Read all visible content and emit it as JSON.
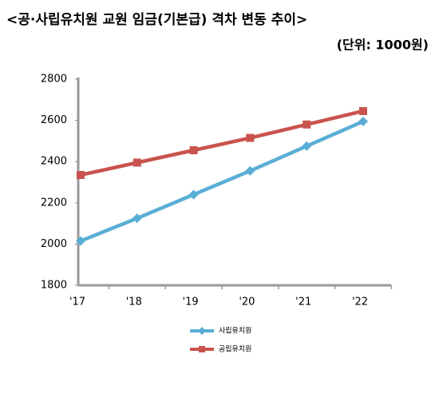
{
  "chart_data": {
    "type": "line",
    "title": "<공·사립유치원 교원 임금(기본급) 격차 변동 추이>",
    "subtitle": "(단위: 1000원)",
    "categories": [
      "'17",
      "'18",
      "'19",
      "'20",
      "'21",
      "'22"
    ],
    "series": [
      {
        "name": "사립유치원",
        "color": "#5aaed6",
        "marker": "diamond",
        "values": [
          2015,
          2125,
          2240,
          2355,
          2475,
          2595
        ]
      },
      {
        "name": "공립유치원",
        "color": "#c9534e",
        "marker": "square",
        "values": [
          2335,
          2395,
          2455,
          2515,
          2580,
          2645
        ]
      }
    ],
    "ylim": [
      1800,
      2800
    ],
    "yticks": [
      1800,
      2000,
      2200,
      2400,
      2600,
      2800
    ],
    "grid": false
  }
}
